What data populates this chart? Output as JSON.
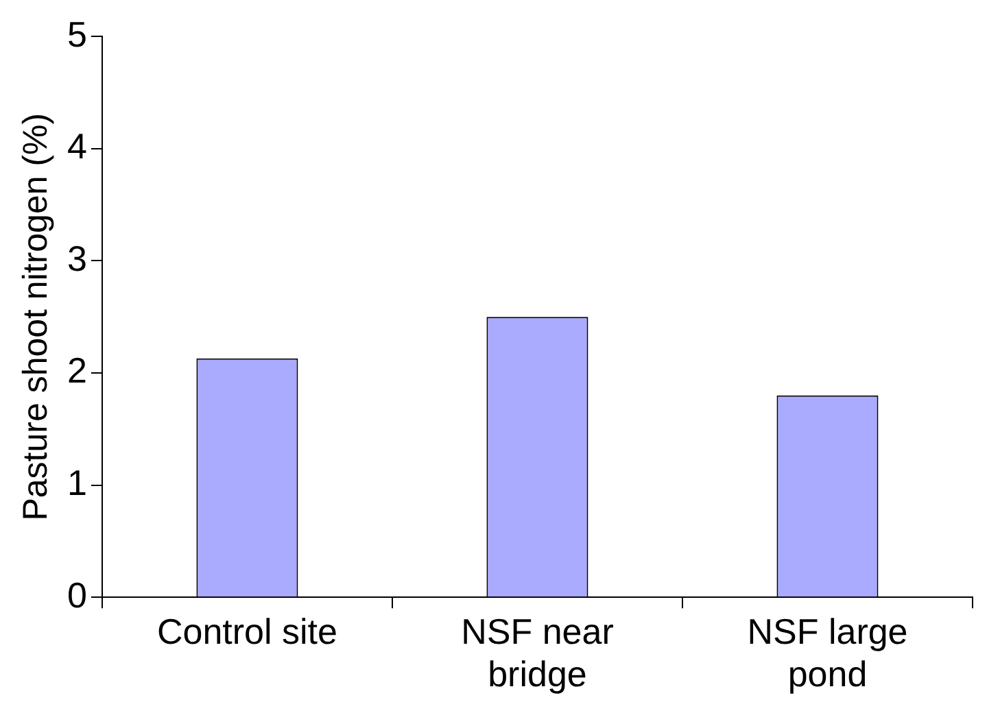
{
  "chart_data": {
    "type": "bar",
    "ylabel": "Pasture shoot nitrogen (%)",
    "categories": [
      "Control site",
      "NSF near bridge",
      "NSF large pond"
    ],
    "values": [
      2.13,
      2.5,
      1.8
    ],
    "color": "#aaaaff",
    "ylim": [
      0,
      5
    ],
    "yticks": [
      0,
      1,
      2,
      3,
      4,
      5
    ],
    "grid": false
  }
}
